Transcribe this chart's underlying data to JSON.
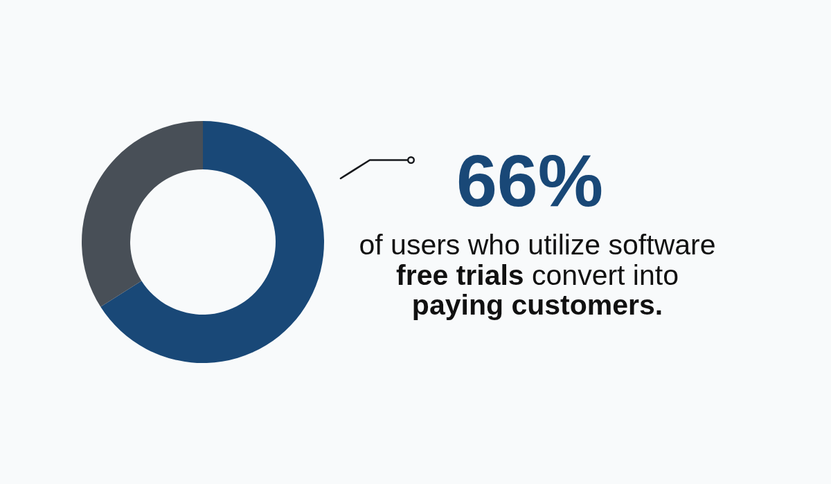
{
  "chart_data": {
    "type": "donut",
    "categories": [
      null,
      null
    ],
    "values": [
      66,
      34
    ],
    "colors": [
      "#194877",
      "#484f57"
    ],
    "value_labels": [
      "66%",
      null
    ],
    "annotations": [
      "of users who utilize software",
      "free trials",
      "convert into",
      "paying customers."
    ]
  }
}
